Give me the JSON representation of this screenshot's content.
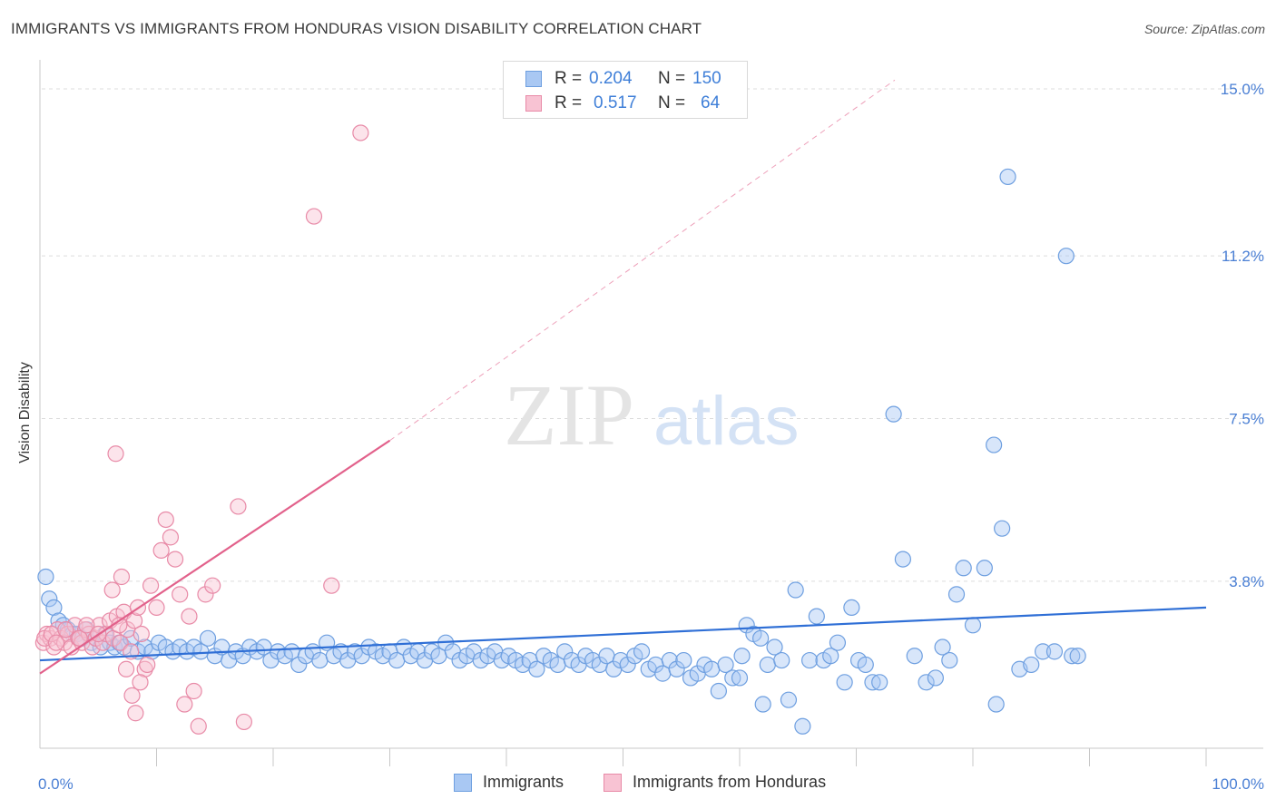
{
  "title": "IMMIGRANTS VS IMMIGRANTS FROM HONDURAS VISION DISABILITY CORRELATION CHART",
  "source": "Source: ZipAtlas.com",
  "watermark": {
    "zip": "ZIP",
    "atlas": "atlas"
  },
  "legend": {
    "rows": [
      {
        "r_label": "R =",
        "r_value": "0.204",
        "n_label": "N =",
        "n_value": "150",
        "color": "#a9c8f3",
        "border": "#6e9fe0"
      },
      {
        "r_label": "R =",
        "r_value": "0.517",
        "n_label": "N =",
        "n_value": "64",
        "color": "#f8c3d3",
        "border": "#e88aa7"
      }
    ]
  },
  "bottom_legend": [
    {
      "label": "Immigrants",
      "color": "#a9c8f3",
      "border": "#6e9fe0"
    },
    {
      "label": "Immigrants from Honduras",
      "color": "#f8c3d3",
      "border": "#e88aa7"
    }
  ],
  "chart_data": {
    "type": "scatter",
    "title": "IMMIGRANTS VS IMMIGRANTS FROM HONDURAS VISION DISABILITY CORRELATION CHART",
    "xlabel": "",
    "ylabel": "Vision Disability",
    "xlim": [
      0,
      100
    ],
    "ylim": [
      0,
      15.5
    ],
    "x_tick_labels": [
      {
        "value": 0,
        "label": "0.0%"
      },
      {
        "value": 100,
        "label": "100.0%"
      }
    ],
    "y_tick_labels": [
      {
        "value": 3.8,
        "label": "3.8%"
      },
      {
        "value": 7.5,
        "label": "7.5%"
      },
      {
        "value": 11.2,
        "label": "11.2%"
      },
      {
        "value": 15.0,
        "label": "15.0%"
      }
    ],
    "x_minor_ticks": [
      10,
      20,
      30,
      40,
      50,
      60,
      70,
      80,
      90,
      100
    ],
    "series": [
      {
        "name": "Immigrants",
        "color": "#6e9fe0",
        "fill": "rgba(169,200,243,0.45)",
        "trend": {
          "x0": 0,
          "y0": 2.0,
          "x1": 100,
          "y1": 3.2,
          "color": "#2f6fd6"
        },
        "points": [
          [
            0.5,
            3.9
          ],
          [
            0.8,
            3.4
          ],
          [
            1.2,
            3.2
          ],
          [
            1.6,
            2.9
          ],
          [
            2.0,
            2.8
          ],
          [
            2.4,
            2.7
          ],
          [
            2.8,
            2.6
          ],
          [
            3.2,
            2.6
          ],
          [
            3.6,
            2.5
          ],
          [
            4.0,
            2.7
          ],
          [
            4.4,
            2.4
          ],
          [
            4.8,
            2.5
          ],
          [
            5.2,
            2.3
          ],
          [
            5.6,
            2.6
          ],
          [
            6.0,
            2.4
          ],
          [
            6.4,
            2.3
          ],
          [
            6.8,
            2.4
          ],
          [
            7.2,
            2.3
          ],
          [
            7.8,
            2.5
          ],
          [
            8.4,
            2.2
          ],
          [
            9.0,
            2.3
          ],
          [
            9.6,
            2.2
          ],
          [
            10.2,
            2.4
          ],
          [
            10.8,
            2.3
          ],
          [
            11.4,
            2.2
          ],
          [
            12.0,
            2.3
          ],
          [
            12.6,
            2.2
          ],
          [
            13.2,
            2.3
          ],
          [
            13.8,
            2.2
          ],
          [
            14.4,
            2.5
          ],
          [
            15.0,
            2.1
          ],
          [
            15.6,
            2.3
          ],
          [
            16.2,
            2.0
          ],
          [
            16.8,
            2.2
          ],
          [
            17.4,
            2.1
          ],
          [
            18.0,
            2.3
          ],
          [
            18.6,
            2.2
          ],
          [
            19.2,
            2.3
          ],
          [
            19.8,
            2.0
          ],
          [
            20.4,
            2.2
          ],
          [
            21.0,
            2.1
          ],
          [
            21.6,
            2.2
          ],
          [
            22.2,
            1.9
          ],
          [
            22.8,
            2.1
          ],
          [
            23.4,
            2.2
          ],
          [
            24.0,
            2.0
          ],
          [
            24.6,
            2.4
          ],
          [
            25.2,
            2.1
          ],
          [
            25.8,
            2.2
          ],
          [
            26.4,
            2.0
          ],
          [
            27.0,
            2.2
          ],
          [
            27.6,
            2.1
          ],
          [
            28.2,
            2.3
          ],
          [
            28.8,
            2.2
          ],
          [
            29.4,
            2.1
          ],
          [
            30.0,
            2.2
          ],
          [
            30.6,
            2.0
          ],
          [
            31.2,
            2.3
          ],
          [
            31.8,
            2.1
          ],
          [
            32.4,
            2.2
          ],
          [
            33.0,
            2.0
          ],
          [
            33.6,
            2.2
          ],
          [
            34.2,
            2.1
          ],
          [
            34.8,
            2.4
          ],
          [
            35.4,
            2.2
          ],
          [
            36.0,
            2.0
          ],
          [
            36.6,
            2.1
          ],
          [
            37.2,
            2.2
          ],
          [
            37.8,
            2.0
          ],
          [
            38.4,
            2.1
          ],
          [
            39.0,
            2.2
          ],
          [
            39.6,
            2.0
          ],
          [
            40.2,
            2.1
          ],
          [
            40.8,
            2.0
          ],
          [
            41.4,
            1.9
          ],
          [
            42.0,
            2.0
          ],
          [
            42.6,
            1.8
          ],
          [
            43.2,
            2.1
          ],
          [
            43.8,
            2.0
          ],
          [
            44.4,
            1.9
          ],
          [
            45.0,
            2.2
          ],
          [
            45.6,
            2.0
          ],
          [
            46.2,
            1.9
          ],
          [
            46.8,
            2.1
          ],
          [
            47.4,
            2.0
          ],
          [
            48.0,
            1.9
          ],
          [
            48.6,
            2.1
          ],
          [
            49.2,
            1.8
          ],
          [
            49.8,
            2.0
          ],
          [
            50.4,
            1.9
          ],
          [
            51.0,
            2.1
          ],
          [
            51.6,
            2.2
          ],
          [
            52.2,
            1.8
          ],
          [
            52.8,
            1.9
          ],
          [
            53.4,
            1.7
          ],
          [
            54.0,
            2.0
          ],
          [
            54.6,
            1.8
          ],
          [
            55.2,
            2.0
          ],
          [
            55.8,
            1.6
          ],
          [
            56.4,
            1.7
          ],
          [
            57.0,
            1.9
          ],
          [
            57.6,
            1.8
          ],
          [
            58.2,
            1.3
          ],
          [
            58.8,
            1.9
          ],
          [
            59.4,
            1.6
          ],
          [
            60.0,
            1.6
          ],
          [
            60.6,
            2.8
          ],
          [
            61.2,
            2.6
          ],
          [
            61.8,
            2.5
          ],
          [
            62.4,
            1.9
          ],
          [
            63.0,
            2.3
          ],
          [
            63.6,
            2.0
          ],
          [
            64.2,
            1.1
          ],
          [
            64.8,
            3.6
          ],
          [
            65.4,
            0.5
          ],
          [
            66.0,
            2.0
          ],
          [
            66.6,
            3.0
          ],
          [
            67.2,
            2.0
          ],
          [
            67.8,
            2.1
          ],
          [
            68.4,
            2.4
          ],
          [
            69.0,
            1.5
          ],
          [
            69.6,
            3.2
          ],
          [
            70.2,
            2.0
          ],
          [
            70.8,
            1.9
          ],
          [
            71.4,
            1.5
          ],
          [
            72.0,
            1.5
          ],
          [
            73.2,
            7.6
          ],
          [
            74.0,
            4.3
          ],
          [
            75.0,
            2.1
          ],
          [
            76.0,
            1.5
          ],
          [
            76.8,
            1.6
          ],
          [
            77.4,
            2.3
          ],
          [
            78.0,
            2.0
          ],
          [
            78.6,
            3.5
          ],
          [
            79.2,
            4.1
          ],
          [
            80.0,
            2.8
          ],
          [
            81.0,
            4.1
          ],
          [
            81.8,
            6.9
          ],
          [
            82.0,
            1.0
          ],
          [
            82.5,
            5.0
          ],
          [
            83.0,
            13.0
          ],
          [
            88.0,
            11.2
          ],
          [
            86.0,
            2.2
          ],
          [
            84.0,
            1.8
          ],
          [
            85.0,
            1.9
          ],
          [
            87.0,
            2.2
          ],
          [
            88.5,
            2.1
          ],
          [
            89.0,
            2.1
          ],
          [
            62.0,
            1.0
          ],
          [
            60.2,
            2.1
          ]
        ]
      },
      {
        "name": "Immigrants from Honduras",
        "color": "#e88aa7",
        "fill": "rgba(248,195,211,0.45)",
        "trend": {
          "x0": 0,
          "y0": 1.7,
          "x1": 30,
          "y1": 7.0,
          "color": "#e2618b"
        },
        "trend_ext": {
          "x0": 30,
          "y0": 7.0,
          "x1": 73.3,
          "y1": 15.2
        },
        "points": [
          [
            0.3,
            2.4
          ],
          [
            0.6,
            2.6
          ],
          [
            0.9,
            2.5
          ],
          [
            1.2,
            2.3
          ],
          [
            1.5,
            2.7
          ],
          [
            1.8,
            2.5
          ],
          [
            2.1,
            2.4
          ],
          [
            2.4,
            2.6
          ],
          [
            2.7,
            2.3
          ],
          [
            3.0,
            2.8
          ],
          [
            3.3,
            2.5
          ],
          [
            3.6,
            2.4
          ],
          [
            3.9,
            2.7
          ],
          [
            4.2,
            2.6
          ],
          [
            4.5,
            2.3
          ],
          [
            4.8,
            2.5
          ],
          [
            5.1,
            2.8
          ],
          [
            5.4,
            2.4
          ],
          [
            5.7,
            2.6
          ],
          [
            6.0,
            2.9
          ],
          [
            6.3,
            2.5
          ],
          [
            6.6,
            3.0
          ],
          [
            6.9,
            2.4
          ],
          [
            7.2,
            3.1
          ],
          [
            7.5,
            2.7
          ],
          [
            7.8,
            2.2
          ],
          [
            8.1,
            2.9
          ],
          [
            8.4,
            3.2
          ],
          [
            8.7,
            2.6
          ],
          [
            9.0,
            1.8
          ],
          [
            0.4,
            2.5
          ],
          [
            1.0,
            2.6
          ],
          [
            1.4,
            2.4
          ],
          [
            2.2,
            2.7
          ],
          [
            3.4,
            2.5
          ],
          [
            4.0,
            2.8
          ],
          [
            5.0,
            2.6
          ],
          [
            6.2,
            3.6
          ],
          [
            6.5,
            6.7
          ],
          [
            6.8,
            2.8
          ],
          [
            7.0,
            3.9
          ],
          [
            7.4,
            1.8
          ],
          [
            7.9,
            1.2
          ],
          [
            8.2,
            0.8
          ],
          [
            8.6,
            1.5
          ],
          [
            9.2,
            1.9
          ],
          [
            9.5,
            3.7
          ],
          [
            10.0,
            3.2
          ],
          [
            10.4,
            4.5
          ],
          [
            10.8,
            5.2
          ],
          [
            11.2,
            4.8
          ],
          [
            11.6,
            4.3
          ],
          [
            12.0,
            3.5
          ],
          [
            12.4,
            1.0
          ],
          [
            12.8,
            3.0
          ],
          [
            13.2,
            1.3
          ],
          [
            13.6,
            0.5
          ],
          [
            14.2,
            3.5
          ],
          [
            14.8,
            3.7
          ],
          [
            17.0,
            5.5
          ],
          [
            17.5,
            0.6
          ],
          [
            23.5,
            12.1
          ],
          [
            25.0,
            3.7
          ],
          [
            27.5,
            14.0
          ]
        ]
      }
    ]
  }
}
